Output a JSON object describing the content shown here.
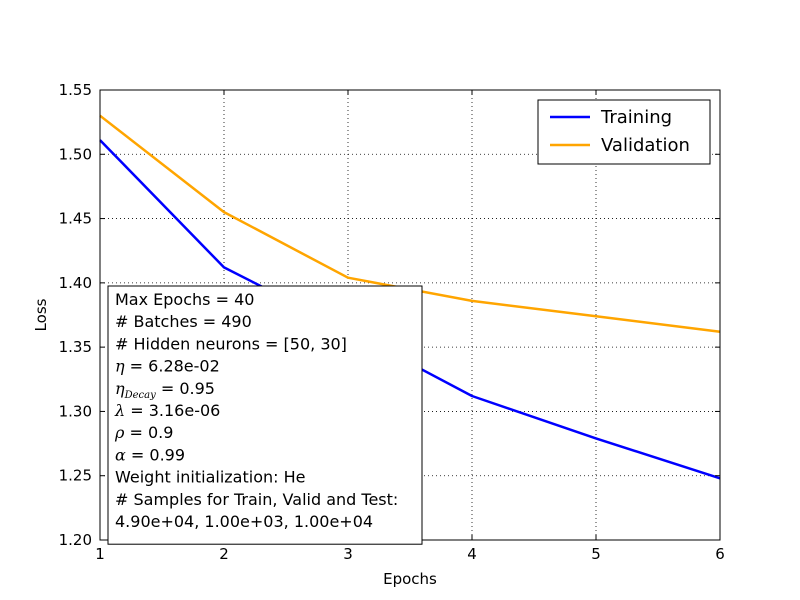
{
  "chart_data": {
    "type": "line",
    "xlabel": "Epochs",
    "ylabel": "Loss",
    "xlim": [
      1,
      6
    ],
    "ylim": [
      1.2,
      1.55
    ],
    "xticks": [
      1,
      2,
      3,
      4,
      5,
      6
    ],
    "yticks": [
      1.2,
      1.25,
      1.3,
      1.35,
      1.4,
      1.45,
      1.5,
      1.55
    ],
    "xtick_labels": [
      "1",
      "2",
      "3",
      "4",
      "5",
      "6"
    ],
    "ytick_labels": [
      "1.20",
      "1.25",
      "1.30",
      "1.35",
      "1.40",
      "1.45",
      "1.50",
      "1.55"
    ],
    "grid": true,
    "grid_style": "dotted",
    "legend_position": "top-right",
    "x": [
      1,
      2,
      3,
      4,
      5,
      6
    ],
    "series": [
      {
        "name": "Training",
        "color": "#0000ff",
        "values": [
          1.511,
          1.412,
          1.363,
          1.312,
          1.279,
          1.248
        ]
      },
      {
        "name": "Validation",
        "color": "#ffa500",
        "values": [
          1.53,
          1.455,
          1.404,
          1.386,
          1.374,
          1.362
        ]
      }
    ],
    "annotation": [
      {
        "text": "Max Epochs = 40"
      },
      {
        "text": "# Batches = 490"
      },
      {
        "text": "# Hidden neurons = [50, 30]"
      },
      {
        "symbol": "η",
        "text": " = 6.28e-02"
      },
      {
        "symbol": "η",
        "sub": "Decay",
        "text": " = 0.95"
      },
      {
        "symbol": "λ",
        "text": " = 3.16e-06"
      },
      {
        "symbol": "ρ",
        "text": " = 0.9"
      },
      {
        "symbol": "α",
        "text": " = 0.99"
      },
      {
        "text": "Weight initialization: He"
      },
      {
        "text": "# Samples for Train, Valid and Test:"
      },
      {
        "text": "4.90e+04, 1.00e+03, 1.00e+04"
      }
    ]
  }
}
